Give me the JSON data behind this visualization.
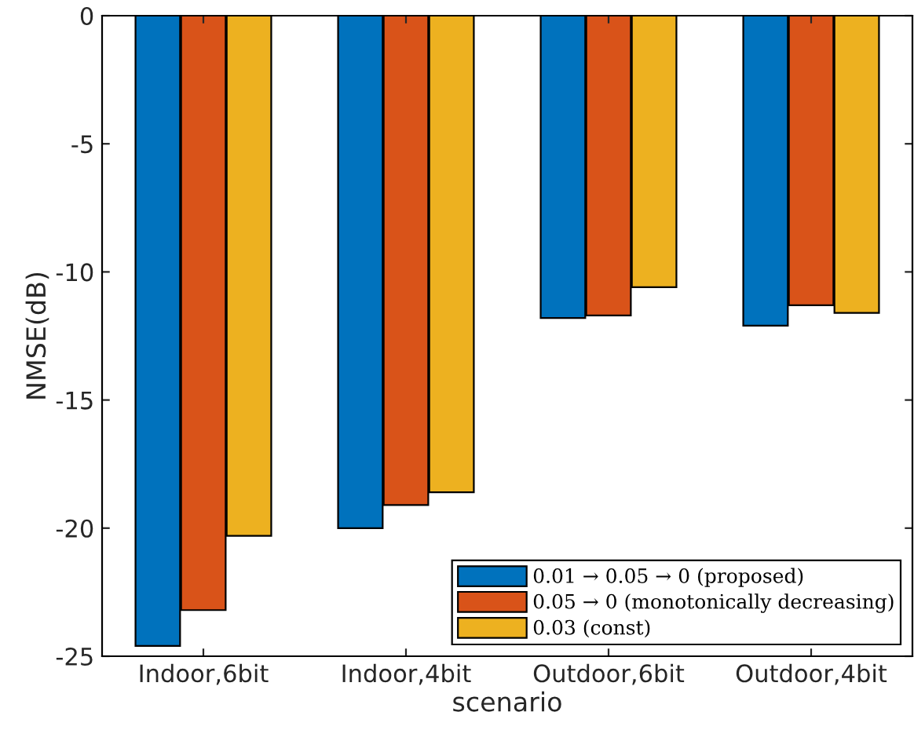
{
  "chart_data": {
    "type": "bar",
    "xlabel": "scenario",
    "ylabel": "NMSE(dB)",
    "categories": [
      "Indoor,6bit",
      "Indoor,4bit",
      "Outdoor,6bit",
      "Outdoor,4bit"
    ],
    "series": [
      {
        "name": "0.01 → 0.05 → 0 (proposed)",
        "color": "#0072bd",
        "values": [
          -24.6,
          -20.0,
          -11.8,
          -12.1
        ]
      },
      {
        "name": "0.05 → 0 (monotonically decreasing)",
        "color": "#d95319",
        "values": [
          -23.2,
          -19.1,
          -11.7,
          -11.3
        ]
      },
      {
        "name": "0.03 (const)",
        "color": "#edb120",
        "values": [
          -20.3,
          -18.6,
          -10.6,
          -11.6
        ]
      }
    ],
    "ylim": [
      -25,
      0
    ],
    "yticks": [
      -25,
      -20,
      -15,
      -10,
      -5,
      0
    ],
    "grid": false,
    "legend": "bottom right"
  }
}
